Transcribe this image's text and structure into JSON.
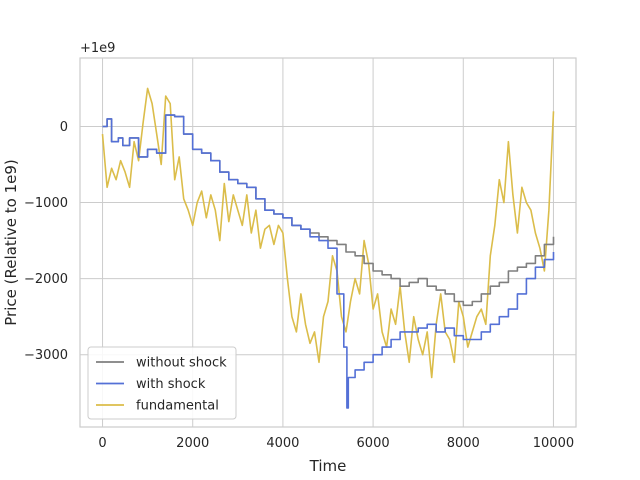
{
  "chart_data": {
    "type": "line",
    "title": "",
    "xlabel": "Time",
    "ylabel": "Price (Relative to 1e9)",
    "y_offset_label": "+1e9",
    "xlim": [
      -500,
      10500
    ],
    "ylim": [
      -3950,
      900
    ],
    "xticks": [
      0,
      2000,
      4000,
      6000,
      8000,
      10000
    ],
    "yticks": [
      -3000,
      -2000,
      -1000,
      0
    ],
    "grid": true,
    "legend_position": "lower-left",
    "series": [
      {
        "name": "without shock",
        "color": "#7f7f7f",
        "step": true,
        "x": [
          0,
          100,
          200,
          350,
          450,
          600,
          800,
          1000,
          1200,
          1400,
          1600,
          1800,
          2000,
          2200,
          2400,
          2600,
          2800,
          3000,
          3200,
          3400,
          3600,
          3800,
          4000,
          4200,
          4400,
          4600,
          4800,
          5000,
          5200,
          5400,
          5600,
          5800,
          6000,
          6200,
          6400,
          6600,
          6800,
          7000,
          7200,
          7400,
          7600,
          7800,
          8000,
          8200,
          8400,
          8600,
          8800,
          9000,
          9200,
          9400,
          9600,
          9800,
          10000
        ],
        "y": [
          0,
          100,
          -200,
          -150,
          -250,
          -150,
          -400,
          -300,
          -350,
          150,
          130,
          -100,
          -300,
          -350,
          -450,
          -600,
          -700,
          -750,
          -800,
          -950,
          -1100,
          -1150,
          -1200,
          -1300,
          -1350,
          -1400,
          -1450,
          -1500,
          -1550,
          -1650,
          -1700,
          -1800,
          -1900,
          -1950,
          -2000,
          -2100,
          -2050,
          -2000,
          -2100,
          -2150,
          -2200,
          -2300,
          -2350,
          -2300,
          -2200,
          -2100,
          -2050,
          -1900,
          -1850,
          -1800,
          -1700,
          -1550,
          -1450
        ]
      },
      {
        "name": "with shock",
        "color": "#5470d6",
        "step": true,
        "x": [
          0,
          100,
          200,
          350,
          450,
          600,
          800,
          1000,
          1200,
          1400,
          1600,
          1800,
          2000,
          2200,
          2400,
          2600,
          2800,
          3000,
          3200,
          3400,
          3600,
          3800,
          4000,
          4200,
          4400,
          4600,
          4800,
          5000,
          5200,
          5350,
          5420,
          5450,
          5600,
          5800,
          6000,
          6200,
          6400,
          6600,
          6800,
          7000,
          7200,
          7400,
          7600,
          7800,
          8000,
          8200,
          8400,
          8600,
          8800,
          9000,
          9200,
          9400,
          9600,
          9800,
          10000
        ],
        "y": [
          0,
          100,
          -200,
          -150,
          -250,
          -150,
          -400,
          -300,
          -350,
          150,
          130,
          -100,
          -300,
          -350,
          -450,
          -600,
          -700,
          -750,
          -800,
          -950,
          -1100,
          -1150,
          -1200,
          -1300,
          -1350,
          -1450,
          -1500,
          -1600,
          -2200,
          -2900,
          -3700,
          -3300,
          -3200,
          -3100,
          -3000,
          -2900,
          -2800,
          -2700,
          -2700,
          -2650,
          -2600,
          -2700,
          -2650,
          -2750,
          -2800,
          -2800,
          -2700,
          -2600,
          -2500,
          -2400,
          -2200,
          -2000,
          -1850,
          -1750,
          -1650
        ]
      },
      {
        "name": "fundamental",
        "color": "#dbbd4a",
        "step": false,
        "x": [
          0,
          100,
          200,
          300,
          400,
          500,
          600,
          700,
          800,
          900,
          1000,
          1100,
          1200,
          1300,
          1400,
          1500,
          1600,
          1700,
          1800,
          1900,
          2000,
          2100,
          2200,
          2300,
          2400,
          2500,
          2600,
          2700,
          2800,
          2900,
          3000,
          3100,
          3200,
          3300,
          3400,
          3500,
          3600,
          3700,
          3800,
          3900,
          4000,
          4100,
          4200,
          4300,
          4400,
          4500,
          4600,
          4700,
          4800,
          4900,
          5000,
          5100,
          5200,
          5300,
          5400,
          5500,
          5600,
          5700,
          5800,
          5900,
          6000,
          6100,
          6200,
          6300,
          6400,
          6500,
          6600,
          6700,
          6800,
          6900,
          7000,
          7100,
          7200,
          7300,
          7400,
          7500,
          7600,
          7700,
          7800,
          7900,
          8000,
          8100,
          8200,
          8300,
          8400,
          8500,
          8600,
          8700,
          8800,
          8900,
          9000,
          9100,
          9200,
          9300,
          9400,
          9500,
          9600,
          9700,
          9800,
          9900,
          10000
        ],
        "y": [
          -100,
          -800,
          -550,
          -700,
          -450,
          -600,
          -800,
          -200,
          -450,
          50,
          500,
          300,
          -100,
          -500,
          400,
          300,
          -700,
          -400,
          -950,
          -1100,
          -1300,
          -1000,
          -850,
          -1200,
          -900,
          -1100,
          -1500,
          -750,
          -1250,
          -900,
          -1100,
          -1300,
          -900,
          -1400,
          -1100,
          -1600,
          -1350,
          -1300,
          -1550,
          -1300,
          -1400,
          -2000,
          -2500,
          -2700,
          -2200,
          -2600,
          -2850,
          -2700,
          -3100,
          -2500,
          -2300,
          -1700,
          -1900,
          -2500,
          -2700,
          -2300,
          -2000,
          -2200,
          -1500,
          -1800,
          -2400,
          -2200,
          -2700,
          -2900,
          -2400,
          -2600,
          -2100,
          -2700,
          -3100,
          -2500,
          -2800,
          -3000,
          -2700,
          -3300,
          -2600,
          -2200,
          -2700,
          -2800,
          -3100,
          -2300,
          -2500,
          -2900,
          -2700,
          -2500,
          -2400,
          -2600,
          -1700,
          -1300,
          -700,
          -1000,
          -200,
          -900,
          -1400,
          -800,
          -1000,
          -1100,
          -1400,
          -1600,
          -1900,
          -1100,
          200
        ]
      }
    ]
  }
}
